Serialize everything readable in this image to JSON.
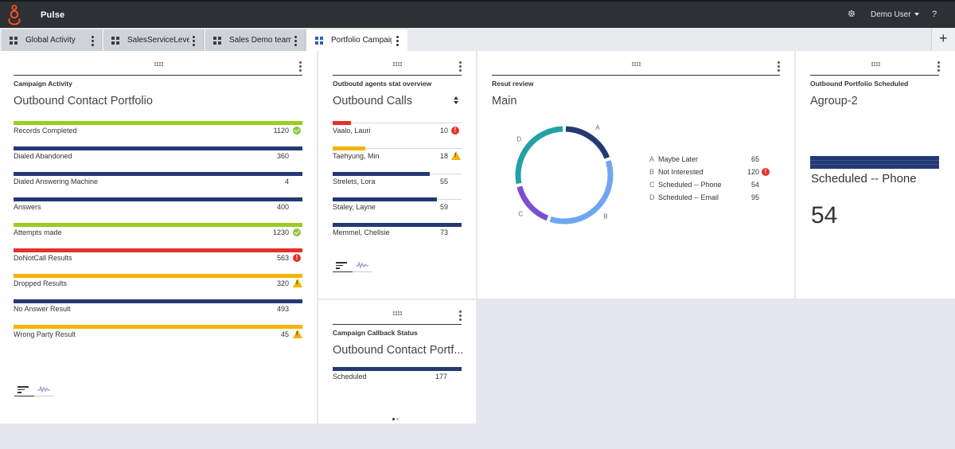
{
  "header": {
    "app_title": "Pulse",
    "user_name": "Demo User",
    "help_label": "?",
    "icons": {
      "logo": "genesys-logo-icon",
      "settings": "gear-icon",
      "help": "help-icon"
    }
  },
  "tabs": [
    {
      "label": "Global Activity",
      "active": false
    },
    {
      "label": "SalesServiceLevel",
      "active": false
    },
    {
      "label": "Sales Demo team",
      "active": false
    },
    {
      "label": "Portfolio Campaign",
      "active": true
    }
  ],
  "add_tab_label": "+",
  "colors": {
    "green": "#9acd1e",
    "navy": "#243a73",
    "red": "#e5302c",
    "amber": "#f4b400",
    "blue": "#2f5fb8"
  },
  "widgets": {
    "campaign_activity": {
      "category": "Campaign Activity",
      "title": "Outbound Contact Portfolio",
      "rows": [
        {
          "label": "Records Completed",
          "value": "1120",
          "color": "#9acd1e",
          "status": "ok"
        },
        {
          "label": "Dialed Abandoned",
          "value": "360",
          "color": "#243a73",
          "status": ""
        },
        {
          "label": "Dialed Answering Machine",
          "value": "4",
          "color": "#243a73",
          "status": ""
        },
        {
          "label": "Answers",
          "value": "400",
          "color": "#243a73",
          "status": ""
        },
        {
          "label": "Attempts made",
          "value": "1230",
          "color": "#9acd1e",
          "status": "ok"
        },
        {
          "label": "DoNotCall Results",
          "value": "563",
          "color": "#e5302c",
          "status": "err"
        },
        {
          "label": "Dropped Results",
          "value": "320",
          "color": "#f4b400",
          "status": "warn"
        },
        {
          "label": "No Answer Result",
          "value": "493",
          "color": "#243a73",
          "status": ""
        },
        {
          "label": "Wrong Party Result",
          "value": "45",
          "color": "#f4b400",
          "status": "warn"
        }
      ]
    },
    "agents": {
      "category": "Outboutd agents stat overview",
      "title": "Outbound Calls",
      "rows": [
        {
          "label": "Vaalo, Lauri",
          "value": "10",
          "fill": 0.14,
          "color": "#e5302c",
          "status": "err"
        },
        {
          "label": "Taehyung, Min",
          "value": "18",
          "fill": 0.25,
          "color": "#f4b400",
          "status": "warn"
        },
        {
          "label": "Strelets, Lora",
          "value": "55",
          "fill": 0.75,
          "color": "#243a73",
          "status": ""
        },
        {
          "label": "Staley, Layne",
          "value": "59",
          "fill": 0.81,
          "color": "#243a73",
          "status": ""
        },
        {
          "label": "Memmel, Chellsie",
          "value": "73",
          "fill": 1.0,
          "color": "#243a73",
          "status": ""
        }
      ]
    },
    "callback": {
      "category": "Campaign Callback Status",
      "title": "Outbound Contact Portf...",
      "rows": [
        {
          "label": "Scheduled",
          "value": "177",
          "color": "#243a73"
        }
      ]
    },
    "result_review": {
      "category": "Resut review",
      "title": "Main",
      "chart_data": {
        "type": "pie",
        "categories": [
          "A",
          "B",
          "C",
          "D"
        ],
        "values": [
          65,
          120,
          54,
          95
        ],
        "colors": [
          "#243a73",
          "#6fa6f0",
          "#7d4fd1",
          "#23a0a8"
        ]
      },
      "legend": [
        {
          "key": "A",
          "name": "Maybe Later",
          "value": "65",
          "status": ""
        },
        {
          "key": "B",
          "name": "Not Interested",
          "value": "120",
          "status": "err"
        },
        {
          "key": "C",
          "name": "Scheduled -- Phone",
          "value": "54",
          "status": ""
        },
        {
          "key": "D",
          "name": "Scheduled -- Email",
          "value": "95",
          "status": ""
        }
      ]
    },
    "scheduled": {
      "category": "Outbound Portfolio Scheduled",
      "title": "Agroup-2",
      "metric_label": "Scheduled -- Phone",
      "metric_value": "54"
    }
  },
  "status_glyphs": {
    "err": "!",
    "warn": "!"
  }
}
